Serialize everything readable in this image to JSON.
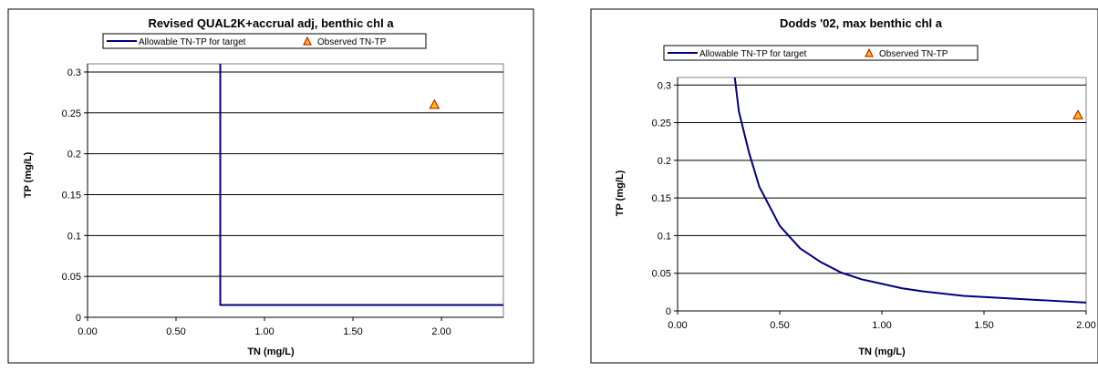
{
  "chart_data": [
    {
      "type": "line",
      "title": "Revised QUAL2K+accrual adj, benthic chl a",
      "xlabel": "TN (mg/L)",
      "ylabel": "TP (mg/L)",
      "xlim": [
        0,
        2.35
      ],
      "ylim": [
        0,
        0.31
      ],
      "xticks": [
        0,
        0.5,
        1.0,
        1.5,
        2.0
      ],
      "xtick_labels": [
        "0.00",
        "0.50",
        "1.00",
        "1.50",
        "2.00"
      ],
      "yticks": [
        0,
        0.05,
        0.1,
        0.15,
        0.2,
        0.25,
        0.3
      ],
      "ytick_labels": [
        "0",
        "0.05",
        "0.1",
        "0.15",
        "0.2",
        "0.25",
        "0.3"
      ],
      "grid": "horizontal",
      "legend_position": "top",
      "line_color": "#00007F",
      "marker_fill": "#FFC000",
      "marker_stroke": "#C00000",
      "series": [
        {
          "name": "Allowable TN-TP for target",
          "kind": "line",
          "x": [
            0.75,
            0.75,
            2.35
          ],
          "y": [
            0.31,
            0.015,
            0.015
          ]
        },
        {
          "name": "Observed TN-TP",
          "kind": "marker",
          "marker": "triangle",
          "x": [
            1.96
          ],
          "y": [
            0.26
          ]
        }
      ]
    },
    {
      "type": "line",
      "title": "Dodds '02, max benthic chl a",
      "xlabel": "TN (mg/L)",
      "ylabel": "TP (mg/L)",
      "xlim": [
        0,
        2.0
      ],
      "ylim": [
        0,
        0.31
      ],
      "xticks": [
        0,
        0.5,
        1.0,
        1.5,
        2.0
      ],
      "xtick_labels": [
        "0.00",
        "0.50",
        "1.00",
        "1.50",
        "2.00"
      ],
      "yticks": [
        0,
        0.05,
        0.1,
        0.15,
        0.2,
        0.25,
        0.3
      ],
      "ytick_labels": [
        "0",
        "0.05",
        "0.1",
        "0.15",
        "0.2",
        "0.25",
        "0.3"
      ],
      "grid": "horizontal",
      "legend_position": "top",
      "line_color": "#00007F",
      "marker_fill": "#FFC000",
      "marker_stroke": "#C00000",
      "series": [
        {
          "name": "Allowable TN-TP for target",
          "kind": "line",
          "x": [
            0.28,
            0.3,
            0.35,
            0.4,
            0.5,
            0.6,
            0.7,
            0.8,
            0.9,
            1.0,
            1.1,
            1.2,
            1.4,
            1.6,
            1.8,
            2.0
          ],
          "y": [
            0.31,
            0.265,
            0.21,
            0.165,
            0.113,
            0.083,
            0.065,
            0.051,
            0.042,
            0.036,
            0.03,
            0.026,
            0.02,
            0.017,
            0.014,
            0.011
          ]
        },
        {
          "name": "Observed TN-TP",
          "kind": "marker",
          "marker": "triangle",
          "x": [
            1.96
          ],
          "y": [
            0.26
          ]
        }
      ]
    }
  ]
}
